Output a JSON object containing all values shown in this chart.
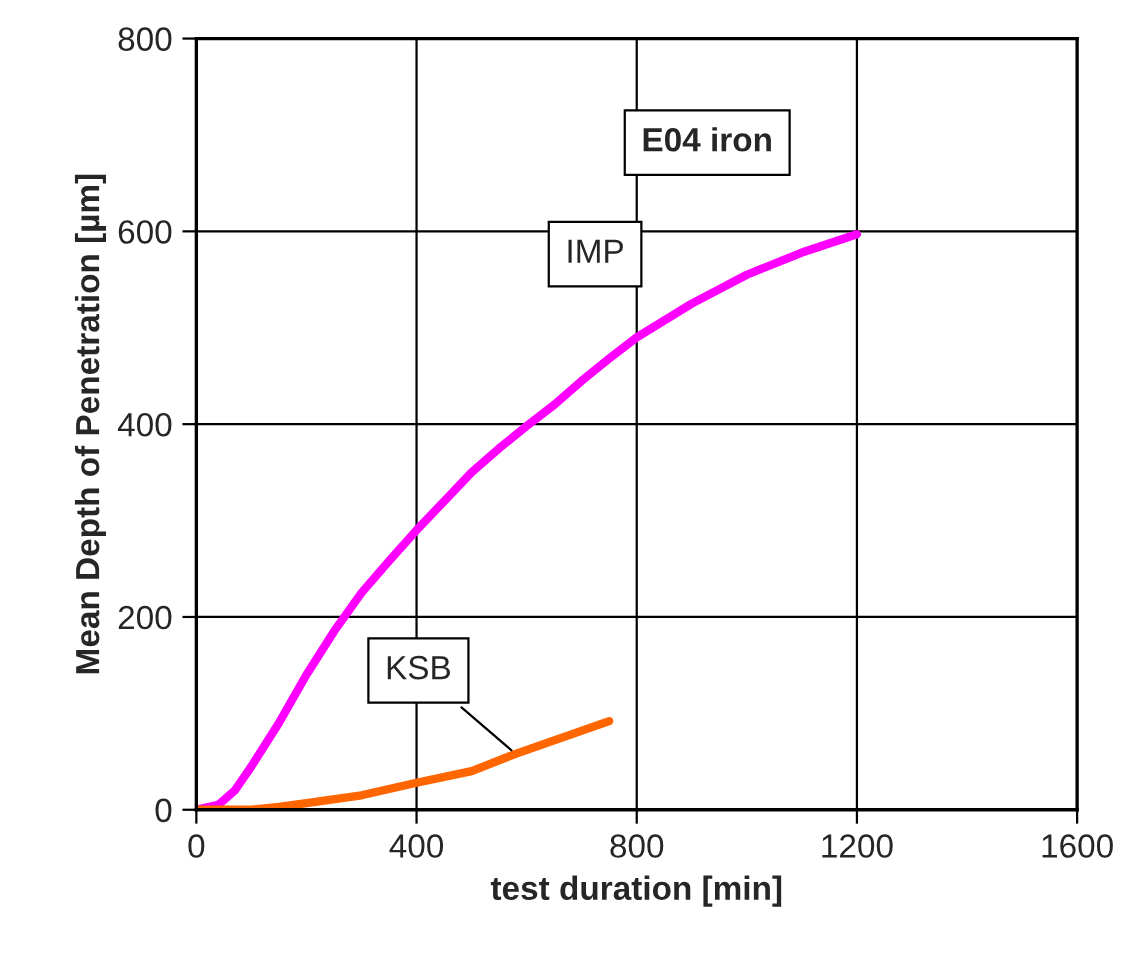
{
  "chart_data": {
    "type": "line",
    "title": "E04 iron",
    "xlabel": "test duration [min]",
    "ylabel": "Mean Depth of Penetration [µm]",
    "xlim": [
      0,
      1600
    ],
    "xticks": [
      0,
      400,
      800,
      1200,
      1600
    ],
    "ylim": [
      0,
      800
    ],
    "yticks": [
      0,
      200,
      400,
      600,
      800
    ],
    "grid": true,
    "legend": false,
    "marker": "none",
    "line_style": "solid",
    "series": [
      {
        "name": "IMP",
        "color": "#ff00ff",
        "x": [
          0,
          40,
          70,
          100,
          150,
          200,
          250,
          300,
          350,
          400,
          450,
          500,
          550,
          600,
          650,
          700,
          750,
          800,
          900,
          1000,
          1100,
          1200
        ],
        "values": [
          0,
          5,
          20,
          45,
          90,
          140,
          185,
          225,
          258,
          290,
          320,
          350,
          375,
          398,
          420,
          445,
          468,
          490,
          525,
          555,
          578,
          597
        ]
      },
      {
        "name": "KSB",
        "color": "#ff6600",
        "x": [
          0,
          100,
          150,
          200,
          300,
          400,
          500,
          580,
          650,
          750
        ],
        "values": [
          0,
          0,
          3,
          7,
          15,
          28,
          40,
          58,
          72,
          92
        ]
      }
    ]
  }
}
